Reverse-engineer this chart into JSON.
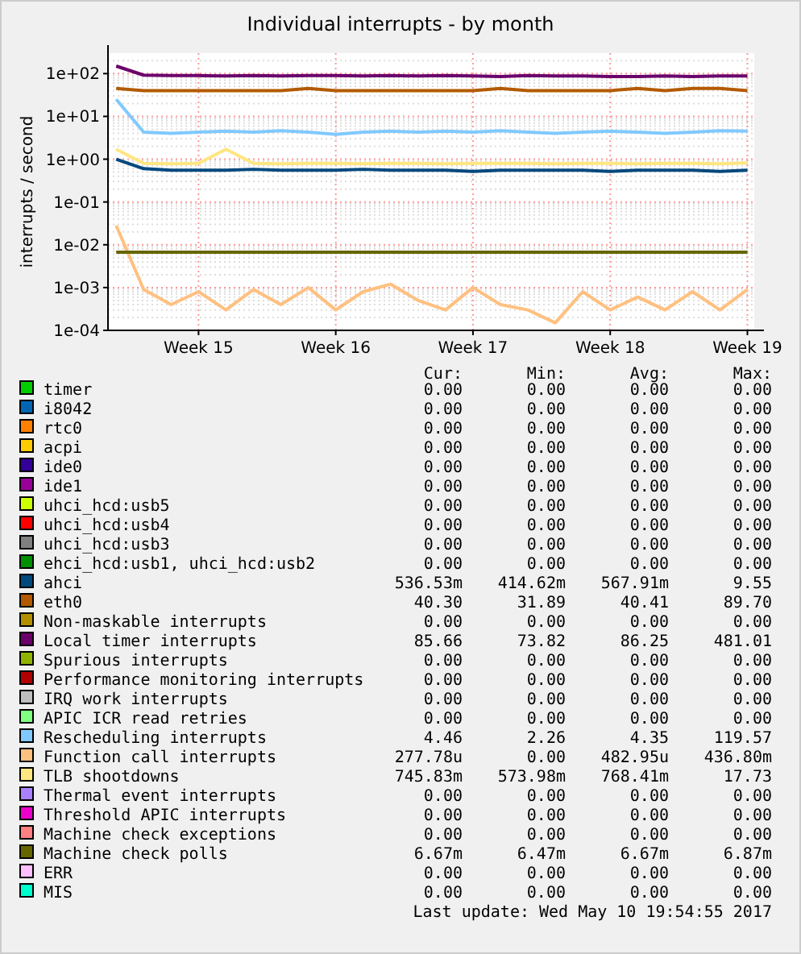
{
  "chart_data": {
    "type": "line",
    "title": "Individual interrupts - by month",
    "ylabel": "interrupts / second",
    "log": "y",
    "grid": true,
    "legend": "bottom",
    "line_style": "solid",
    "marker": "none",
    "categories": [
      null,
      null,
      null,
      "Week 15",
      null,
      null,
      null,
      null,
      "Week 16",
      null,
      null,
      null,
      null,
      "Week 17",
      null,
      null,
      null,
      null,
      "Week 18",
      null,
      null,
      null,
      null,
      "Week 19"
    ],
    "ylim": [
      0.0001,
      300
    ],
    "yticks": [
      {
        "value": 0.0001,
        "label": "1e-04"
      },
      {
        "value": 0.001,
        "label": "1e-03"
      },
      {
        "value": 0.01,
        "label": "1e-02"
      },
      {
        "value": 0.1,
        "label": "1e-01"
      },
      {
        "value": 1,
        "label": "1e+00"
      },
      {
        "value": 10,
        "label": "1e+01"
      },
      {
        "value": 100,
        "label": "1e+02"
      }
    ],
    "series": [
      {
        "name": "timer",
        "color": "#00cc00",
        "values": [
          null,
          null,
          null,
          null,
          null,
          null,
          null,
          null,
          null,
          null,
          null,
          null,
          null,
          null,
          null,
          null,
          null,
          null,
          null,
          null,
          null,
          null,
          null,
          null
        ]
      },
      {
        "name": "i8042",
        "color": "#0066b3",
        "values": [
          null,
          null,
          null,
          null,
          null,
          null,
          null,
          null,
          null,
          null,
          null,
          null,
          null,
          null,
          null,
          null,
          null,
          null,
          null,
          null,
          null,
          null,
          null,
          null
        ]
      },
      {
        "name": "rtc0",
        "color": "#ff8000",
        "values": [
          null,
          null,
          null,
          null,
          null,
          null,
          null,
          null,
          null,
          null,
          null,
          null,
          null,
          null,
          null,
          null,
          null,
          null,
          null,
          null,
          null,
          null,
          null,
          null
        ]
      },
      {
        "name": "acpi",
        "color": "#ffcc00",
        "values": [
          null,
          null,
          null,
          null,
          null,
          null,
          null,
          null,
          null,
          null,
          null,
          null,
          null,
          null,
          null,
          null,
          null,
          null,
          null,
          null,
          null,
          null,
          null,
          null
        ]
      },
      {
        "name": "ide0",
        "color": "#330099",
        "values": [
          null,
          null,
          null,
          null,
          null,
          null,
          null,
          null,
          null,
          null,
          null,
          null,
          null,
          null,
          null,
          null,
          null,
          null,
          null,
          null,
          null,
          null,
          null,
          null
        ]
      },
      {
        "name": "ide1",
        "color": "#990099",
        "values": [
          null,
          null,
          null,
          null,
          null,
          null,
          null,
          null,
          null,
          null,
          null,
          null,
          null,
          null,
          null,
          null,
          null,
          null,
          null,
          null,
          null,
          null,
          null,
          null
        ]
      },
      {
        "name": "uhci_hcd:usb5",
        "color": "#ccff00",
        "values": [
          null,
          null,
          null,
          null,
          null,
          null,
          null,
          null,
          null,
          null,
          null,
          null,
          null,
          null,
          null,
          null,
          null,
          null,
          null,
          null,
          null,
          null,
          null,
          null
        ]
      },
      {
        "name": "uhci_hcd:usb4",
        "color": "#ff0000",
        "values": [
          null,
          null,
          null,
          null,
          null,
          null,
          null,
          null,
          null,
          null,
          null,
          null,
          null,
          null,
          null,
          null,
          null,
          null,
          null,
          null,
          null,
          null,
          null,
          null
        ]
      },
      {
        "name": "uhci_hcd:usb3",
        "color": "#808080",
        "values": [
          null,
          null,
          null,
          null,
          null,
          null,
          null,
          null,
          null,
          null,
          null,
          null,
          null,
          null,
          null,
          null,
          null,
          null,
          null,
          null,
          null,
          null,
          null,
          null
        ]
      },
      {
        "name": "ehci_hcd:usb1, uhci_hcd:usb2",
        "color": "#008f00",
        "values": [
          null,
          null,
          null,
          null,
          null,
          null,
          null,
          null,
          null,
          null,
          null,
          null,
          null,
          null,
          null,
          null,
          null,
          null,
          null,
          null,
          null,
          null,
          null,
          null
        ]
      },
      {
        "name": "ahci",
        "color": "#00487d",
        "values": [
          1.0,
          0.6,
          0.55,
          0.55,
          0.55,
          0.58,
          0.55,
          0.55,
          0.55,
          0.58,
          0.55,
          0.55,
          0.55,
          0.52,
          0.55,
          0.55,
          0.55,
          0.55,
          0.52,
          0.55,
          0.55,
          0.55,
          0.52,
          0.55
        ]
      },
      {
        "name": "eth0",
        "color": "#b35a00",
        "values": [
          45,
          40,
          40,
          40,
          40,
          40,
          40,
          45,
          40,
          40,
          40,
          40,
          40,
          40,
          45,
          40,
          40,
          40,
          40,
          45,
          40,
          45,
          45,
          40
        ]
      },
      {
        "name": "Non-maskable interrupts",
        "color": "#b38f00",
        "values": [
          null,
          null,
          null,
          null,
          null,
          null,
          null,
          null,
          null,
          null,
          null,
          null,
          null,
          null,
          null,
          null,
          null,
          null,
          null,
          null,
          null,
          null,
          null,
          null
        ]
      },
      {
        "name": "Local timer interrupts",
        "color": "#6b006b",
        "values": [
          150,
          92,
          90,
          90,
          88,
          90,
          88,
          90,
          90,
          88,
          90,
          88,
          90,
          88,
          85,
          90,
          88,
          88,
          85,
          85,
          88,
          85,
          88,
          88
        ]
      },
      {
        "name": "Spurious interrupts",
        "color": "#8fb300",
        "values": [
          null,
          null,
          null,
          null,
          null,
          null,
          null,
          null,
          null,
          null,
          null,
          null,
          null,
          null,
          null,
          null,
          null,
          null,
          null,
          null,
          null,
          null,
          null,
          null
        ]
      },
      {
        "name": "Performance monitoring interrupts",
        "color": "#b30000",
        "values": [
          null,
          null,
          null,
          null,
          null,
          null,
          null,
          null,
          null,
          null,
          null,
          null,
          null,
          null,
          null,
          null,
          null,
          null,
          null,
          null,
          null,
          null,
          null,
          null
        ]
      },
      {
        "name": "IRQ work interrupts",
        "color": "#bebebe",
        "values": [
          null,
          null,
          null,
          null,
          null,
          null,
          null,
          null,
          null,
          null,
          null,
          null,
          null,
          null,
          null,
          null,
          null,
          null,
          null,
          null,
          null,
          null,
          null,
          null
        ]
      },
      {
        "name": "APIC ICR read retries",
        "color": "#80ff80",
        "values": [
          null,
          null,
          null,
          null,
          null,
          null,
          null,
          null,
          null,
          null,
          null,
          null,
          null,
          null,
          null,
          null,
          null,
          null,
          null,
          null,
          null,
          null,
          null,
          null
        ]
      },
      {
        "name": "Rescheduling interrupts",
        "color": "#80c9ff",
        "values": [
          25,
          4.3,
          4.0,
          4.3,
          4.5,
          4.3,
          4.6,
          4.3,
          3.8,
          4.3,
          4.5,
          4.3,
          4.5,
          4.3,
          4.6,
          4.3,
          4.0,
          4.3,
          4.5,
          4.3,
          4.0,
          4.3,
          4.6,
          4.5
        ]
      },
      {
        "name": "Function call interrupts",
        "color": "#ffc080",
        "values": [
          0.028,
          0.0009,
          0.0004,
          0.0008,
          0.0003,
          0.0009,
          0.0004,
          0.001,
          0.0003,
          0.0008,
          0.0012,
          0.0005,
          0.0003,
          0.001,
          0.0004,
          0.0003,
          0.00015,
          0.0008,
          0.0003,
          0.0006,
          0.0003,
          0.0008,
          0.0003,
          0.0009
        ]
      },
      {
        "name": "TLB shootdowns",
        "color": "#ffe680",
        "values": [
          1.7,
          0.8,
          0.78,
          0.8,
          1.7,
          0.8,
          0.78,
          0.8,
          0.8,
          0.78,
          0.8,
          0.8,
          0.78,
          0.8,
          0.8,
          0.8,
          0.78,
          0.8,
          0.8,
          0.78,
          0.8,
          0.8,
          0.78,
          0.82
        ]
      },
      {
        "name": "Thermal event interrupts",
        "color": "#aa80ff",
        "values": [
          null,
          null,
          null,
          null,
          null,
          null,
          null,
          null,
          null,
          null,
          null,
          null,
          null,
          null,
          null,
          null,
          null,
          null,
          null,
          null,
          null,
          null,
          null,
          null
        ]
      },
      {
        "name": "Threshold APIC interrupts",
        "color": "#ee00cc",
        "values": [
          null,
          null,
          null,
          null,
          null,
          null,
          null,
          null,
          null,
          null,
          null,
          null,
          null,
          null,
          null,
          null,
          null,
          null,
          null,
          null,
          null,
          null,
          null,
          null
        ]
      },
      {
        "name": "Machine check exceptions",
        "color": "#ff8080",
        "values": [
          null,
          null,
          null,
          null,
          null,
          null,
          null,
          null,
          null,
          null,
          null,
          null,
          null,
          null,
          null,
          null,
          null,
          null,
          null,
          null,
          null,
          null,
          null,
          null
        ]
      },
      {
        "name": "Machine check polls",
        "color": "#666600",
        "values": [
          0.0067,
          0.0067,
          0.0067,
          0.0067,
          0.0067,
          0.0067,
          0.0067,
          0.0067,
          0.0067,
          0.0067,
          0.0067,
          0.0067,
          0.0067,
          0.0067,
          0.0067,
          0.0067,
          0.0067,
          0.0067,
          0.0067,
          0.0067,
          0.0067,
          0.0067,
          0.0067,
          0.0067
        ]
      },
      {
        "name": "ERR",
        "color": "#ffbfff",
        "values": [
          null,
          null,
          null,
          null,
          null,
          null,
          null,
          null,
          null,
          null,
          null,
          null,
          null,
          null,
          null,
          null,
          null,
          null,
          null,
          null,
          null,
          null,
          null,
          null
        ]
      },
      {
        "name": "MIS",
        "color": "#00ffcc",
        "values": [
          null,
          null,
          null,
          null,
          null,
          null,
          null,
          null,
          null,
          null,
          null,
          null,
          null,
          null,
          null,
          null,
          null,
          null,
          null,
          null,
          null,
          null,
          null,
          null
        ]
      }
    ],
    "annotations": [
      "Cur:",
      "Min:",
      "Avg:",
      "Max:",
      "0.00",
      "0.00",
      "0.00",
      "0.00",
      "0.00",
      "0.00",
      "0.00",
      "0.00",
      "0.00",
      "0.00",
      "0.00",
      "0.00",
      "0.00",
      "0.00",
      "0.00",
      "0.00",
      "0.00",
      "0.00",
      "0.00",
      "0.00",
      "0.00",
      "0.00",
      "0.00",
      "0.00",
      "0.00",
      "0.00",
      "0.00",
      "0.00",
      "0.00",
      "0.00",
      "0.00",
      "0.00",
      "0.00",
      "0.00",
      "0.00",
      "0.00",
      "0.00",
      "0.00",
      "0.00",
      "0.00",
      "536.53m",
      "414.62m",
      "567.91m",
      "9.55",
      "40.30",
      "31.89",
      "40.41",
      "89.70",
      "0.00",
      "0.00",
      "0.00",
      "0.00",
      "85.66",
      "73.82",
      "86.25",
      "481.01",
      "0.00",
      "0.00",
      "0.00",
      "0.00",
      "0.00",
      "0.00",
      "0.00",
      "0.00",
      "0.00",
      "0.00",
      "0.00",
      "0.00",
      "0.00",
      "0.00",
      "0.00",
      "0.00",
      "4.46",
      "2.26",
      "4.35",
      "119.57",
      "277.78u",
      "0.00",
      "482.95u",
      "436.80m",
      "745.83m",
      "573.98m",
      "768.41m",
      "17.73",
      "0.00",
      "0.00",
      "0.00",
      "0.00",
      "0.00",
      "0.00",
      "0.00",
      "0.00",
      "0.00",
      "0.00",
      "0.00",
      "0.00",
      "6.67m",
      "6.47m",
      "6.67m",
      "6.87m",
      "0.00",
      "0.00",
      "0.00",
      "0.00",
      "0.00",
      "0.00",
      "0.00",
      "0.00",
      "Last update: Wed May 10 19:54:55 2017"
    ]
  }
}
